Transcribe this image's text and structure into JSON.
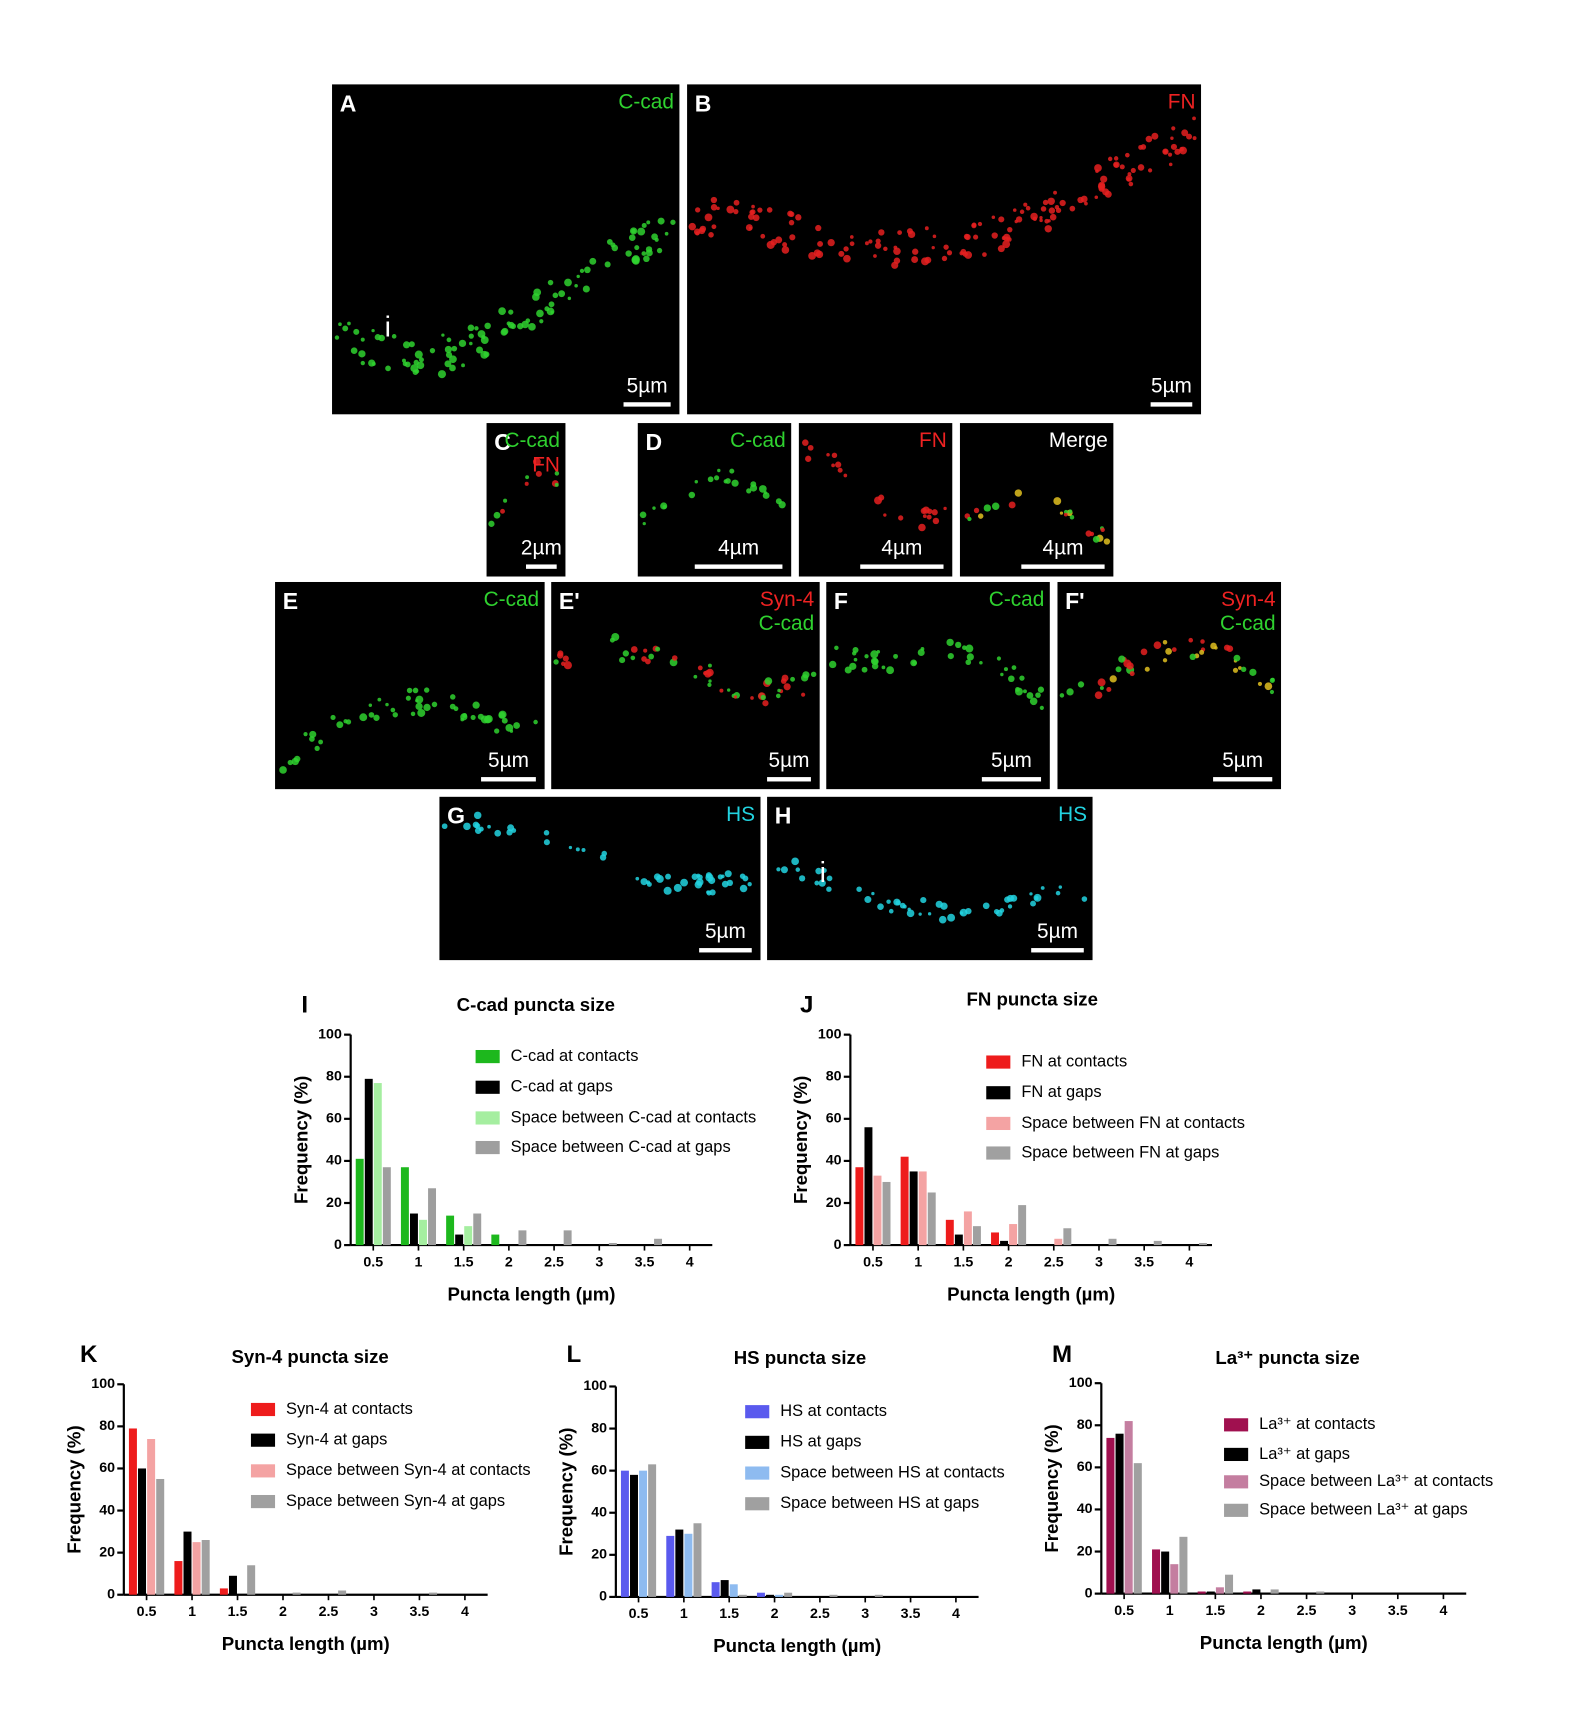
{
  "images": [
    {
      "letter": "A",
      "labels": [
        {
          "text": "C-cad",
          "color": "#2fd12f"
        }
      ],
      "scale": "5µm",
      "marker": "i",
      "dots": [
        "#2fd12f"
      ]
    },
    {
      "letter": "B",
      "labels": [
        {
          "text": "FN",
          "color": "#ee2222"
        }
      ],
      "scale": "5µm",
      "dots": [
        "#e52020"
      ]
    },
    {
      "letter": "C",
      "labels": [
        {
          "text": "C-cad",
          "color": "#2fd12f"
        },
        {
          "text": "FN",
          "color": "#ee2222"
        }
      ],
      "scale": "2µm",
      "dots": [
        "#2fd12f",
        "#e52020"
      ]
    },
    {
      "letter": "D",
      "labels": [
        {
          "text": "C-cad",
          "color": "#2fd12f"
        }
      ],
      "scale": "4µm",
      "dots": [
        "#2fd12f"
      ]
    },
    {
      "labels": [
        {
          "text": "FN",
          "color": "#ee2222"
        }
      ],
      "scale": "4µm",
      "dots": [
        "#e52020"
      ]
    },
    {
      "labels": [
        {
          "text": "Merge",
          "color": "#ffffff"
        }
      ],
      "scale": "4µm",
      "dots": [
        "#2fd12f",
        "#e52020",
        "#e0c020"
      ]
    },
    {
      "letter": "E",
      "labels": [
        {
          "text": "C-cad",
          "color": "#2fd12f"
        }
      ],
      "scale": "5µm",
      "dots": [
        "#2fd12f"
      ]
    },
    {
      "letter": "E'",
      "labels": [
        {
          "text": "Syn-4",
          "color": "#ee2222"
        },
        {
          "text": "C-cad",
          "color": "#2fd12f"
        }
      ],
      "scale": "5µm",
      "dots": [
        "#e52020",
        "#2fd12f"
      ]
    },
    {
      "letter": "F",
      "labels": [
        {
          "text": "C-cad",
          "color": "#2fd12f"
        }
      ],
      "scale": "5µm",
      "dots": [
        "#2fd12f"
      ]
    },
    {
      "letter": "F'",
      "labels": [
        {
          "text": "Syn-4",
          "color": "#ee2222"
        },
        {
          "text": "C-cad",
          "color": "#2fd12f"
        }
      ],
      "scale": "5µm",
      "dots": [
        "#e52020",
        "#2fd12f",
        "#e0c020"
      ]
    },
    {
      "letter": "G",
      "labels": [
        {
          "text": "HS",
          "color": "#22d3e0"
        }
      ],
      "scale": "5µm",
      "dots": [
        "#22d3e0"
      ]
    },
    {
      "letter": "H",
      "labels": [
        {
          "text": "HS",
          "color": "#22d3e0"
        }
      ],
      "scale": "5µm",
      "marker": "i",
      "dots": [
        "#22d3e0"
      ]
    }
  ],
  "chart_data": [
    {
      "type": "bar",
      "panel": "I",
      "title": "C-cad puncta size",
      "x_label": "Puncta length (µm)",
      "y_label": "Frequency (%)",
      "categories": [
        "0.5",
        "1",
        "1.5",
        "2",
        "2.5",
        "3",
        "3.5",
        "4"
      ],
      "ylim": [
        0,
        100
      ],
      "yticks": [
        0,
        20,
        40,
        60,
        80,
        100
      ],
      "series": [
        {
          "name": "C-cad at contacts",
          "color": "#1db81d",
          "values": [
            41,
            37,
            14,
            5,
            0,
            0,
            0,
            0
          ]
        },
        {
          "name": "C-cad at gaps",
          "color": "#000000",
          "values": [
            79,
            15,
            5,
            0,
            0,
            0,
            0,
            0
          ]
        },
        {
          "name": "Space between C-cad at contacts",
          "color": "#a5eea0",
          "values": [
            77,
            12,
            9,
            0,
            0,
            0,
            0,
            0
          ]
        },
        {
          "name": "Space between C-cad at gaps",
          "color": "#9e9e9e",
          "values": [
            37,
            27,
            15,
            7,
            7,
            1,
            3,
            0
          ]
        }
      ]
    },
    {
      "type": "bar",
      "panel": "J",
      "title": "FN puncta size",
      "x_label": "Puncta length (µm)",
      "y_label": "Frequency (%)",
      "categories": [
        "0.5",
        "1",
        "1.5",
        "2",
        "2.5",
        "3",
        "3.5",
        "4"
      ],
      "ylim": [
        0,
        100
      ],
      "yticks": [
        0,
        20,
        40,
        60,
        80,
        100
      ],
      "series": [
        {
          "name": "FN at contacts",
          "color": "#ee1c1c",
          "values": [
            37,
            42,
            12,
            6,
            0,
            0,
            0,
            0
          ]
        },
        {
          "name": "FN at gaps",
          "color": "#000000",
          "values": [
            56,
            35,
            5,
            2,
            0,
            0,
            0,
            0
          ]
        },
        {
          "name": "Space between FN at contacts",
          "color": "#f4a3a3",
          "values": [
            33,
            35,
            16,
            10,
            3,
            0,
            0,
            0
          ]
        },
        {
          "name": "Space between FN at gaps",
          "color": "#a0a0a0",
          "values": [
            30,
            25,
            9,
            19,
            8,
            3,
            2,
            1
          ]
        }
      ]
    },
    {
      "type": "bar",
      "panel": "K",
      "title": "Syn-4 puncta size",
      "x_label": "Puncta length (µm)",
      "y_label": "Frequency (%)",
      "categories": [
        "0.5",
        "1",
        "1.5",
        "2",
        "2.5",
        "3",
        "3.5",
        "4"
      ],
      "ylim": [
        0,
        100
      ],
      "yticks": [
        0,
        20,
        40,
        60,
        80,
        100
      ],
      "series": [
        {
          "name": "Syn-4 at contacts",
          "color": "#ee1c1c",
          "values": [
            79,
            16,
            3,
            0,
            0,
            0,
            0,
            0
          ]
        },
        {
          "name": "Syn-4 at gaps",
          "color": "#000000",
          "values": [
            60,
            30,
            9,
            0,
            0,
            0,
            0,
            0
          ]
        },
        {
          "name": "Space between Syn-4 at contacts",
          "color": "#f4a3a3",
          "values": [
            74,
            25,
            0,
            0,
            0,
            0,
            0,
            0
          ]
        },
        {
          "name": "Space between Syn-4 at gaps",
          "color": "#a0a0a0",
          "values": [
            55,
            26,
            14,
            1,
            2,
            0,
            1,
            0
          ]
        }
      ]
    },
    {
      "type": "bar",
      "panel": "L",
      "title": "HS puncta size",
      "x_label": "Puncta length (µm)",
      "y_label": "Frequency (%)",
      "categories": [
        "0.5",
        "1",
        "1.5",
        "2",
        "2.5",
        "3",
        "3.5",
        "4"
      ],
      "ylim": [
        0,
        100
      ],
      "yticks": [
        0,
        20,
        40,
        60,
        80,
        100
      ],
      "series": [
        {
          "name": "HS at contacts",
          "color": "#5a5aee",
          "values": [
            60,
            29,
            7,
            2,
            0,
            0,
            0,
            0
          ]
        },
        {
          "name": "HS at gaps",
          "color": "#000000",
          "values": [
            58,
            32,
            8,
            1,
            0,
            0,
            0,
            0
          ]
        },
        {
          "name": "Space between HS at contacts",
          "color": "#8ebbf0",
          "values": [
            60,
            30,
            6,
            1,
            0,
            0,
            0,
            0
          ]
        },
        {
          "name": "Space between HS at gaps",
          "color": "#a0a0a0",
          "values": [
            63,
            35,
            1,
            2,
            1,
            1,
            0,
            0
          ]
        }
      ]
    },
    {
      "type": "bar",
      "panel": "M",
      "title": "La³⁺ puncta size",
      "x_label": "Puncta length (µm)",
      "y_label": "Frequency (%)",
      "categories": [
        "0.5",
        "1",
        "1.5",
        "2",
        "2.5",
        "3",
        "3.5",
        "4"
      ],
      "ylim": [
        0,
        100
      ],
      "yticks": [
        0,
        20,
        40,
        60,
        80,
        100
      ],
      "series": [
        {
          "name": "La³⁺ at contacts",
          "color": "#a0104f",
          "values": [
            74,
            21,
            1,
            1,
            0,
            0,
            0,
            0
          ]
        },
        {
          "name": "La³⁺ at gaps",
          "color": "#000000",
          "values": [
            76,
            20,
            1,
            2,
            0,
            0,
            0,
            0
          ]
        },
        {
          "name": "Space between La³⁺ at contacts",
          "color": "#c47ea0",
          "values": [
            82,
            14,
            3,
            0,
            0,
            0,
            0,
            0
          ]
        },
        {
          "name": "Space between La³⁺ at gaps",
          "color": "#a0a0a0",
          "values": [
            62,
            27,
            9,
            2,
            1,
            0,
            0,
            0
          ]
        }
      ]
    }
  ]
}
